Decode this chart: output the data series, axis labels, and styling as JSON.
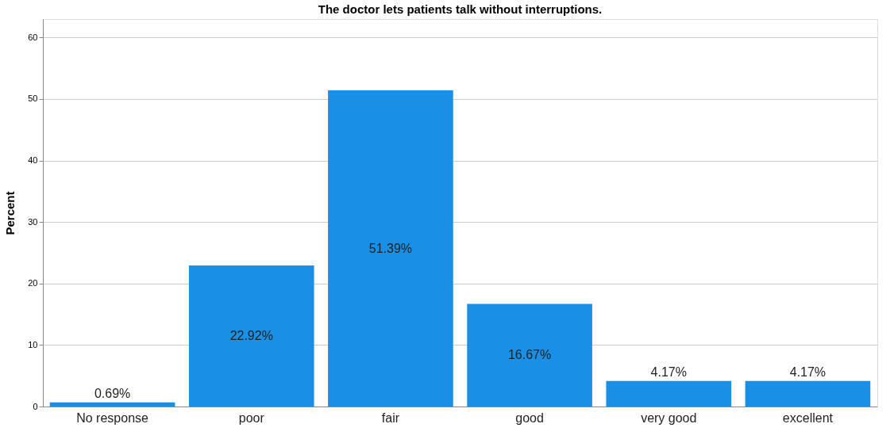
{
  "chart_data": {
    "type": "bar",
    "title": "The doctor lets patients talk without interruptions.",
    "ylabel": "Percent",
    "categories": [
      "No response",
      "poor",
      "fair",
      "good",
      "very good",
      "excellent"
    ],
    "values": [
      0.69,
      22.92,
      51.39,
      16.67,
      4.17,
      4.17
    ],
    "value_labels": [
      "0.69%",
      "22.92%",
      "51.39%",
      "16.67%",
      "4.17%",
      "4.17%"
    ],
    "color": "#1990e6",
    "ylim": [
      0,
      63
    ],
    "yticks": [
      0,
      10,
      20,
      30,
      40,
      50,
      60
    ],
    "grid": "y"
  }
}
